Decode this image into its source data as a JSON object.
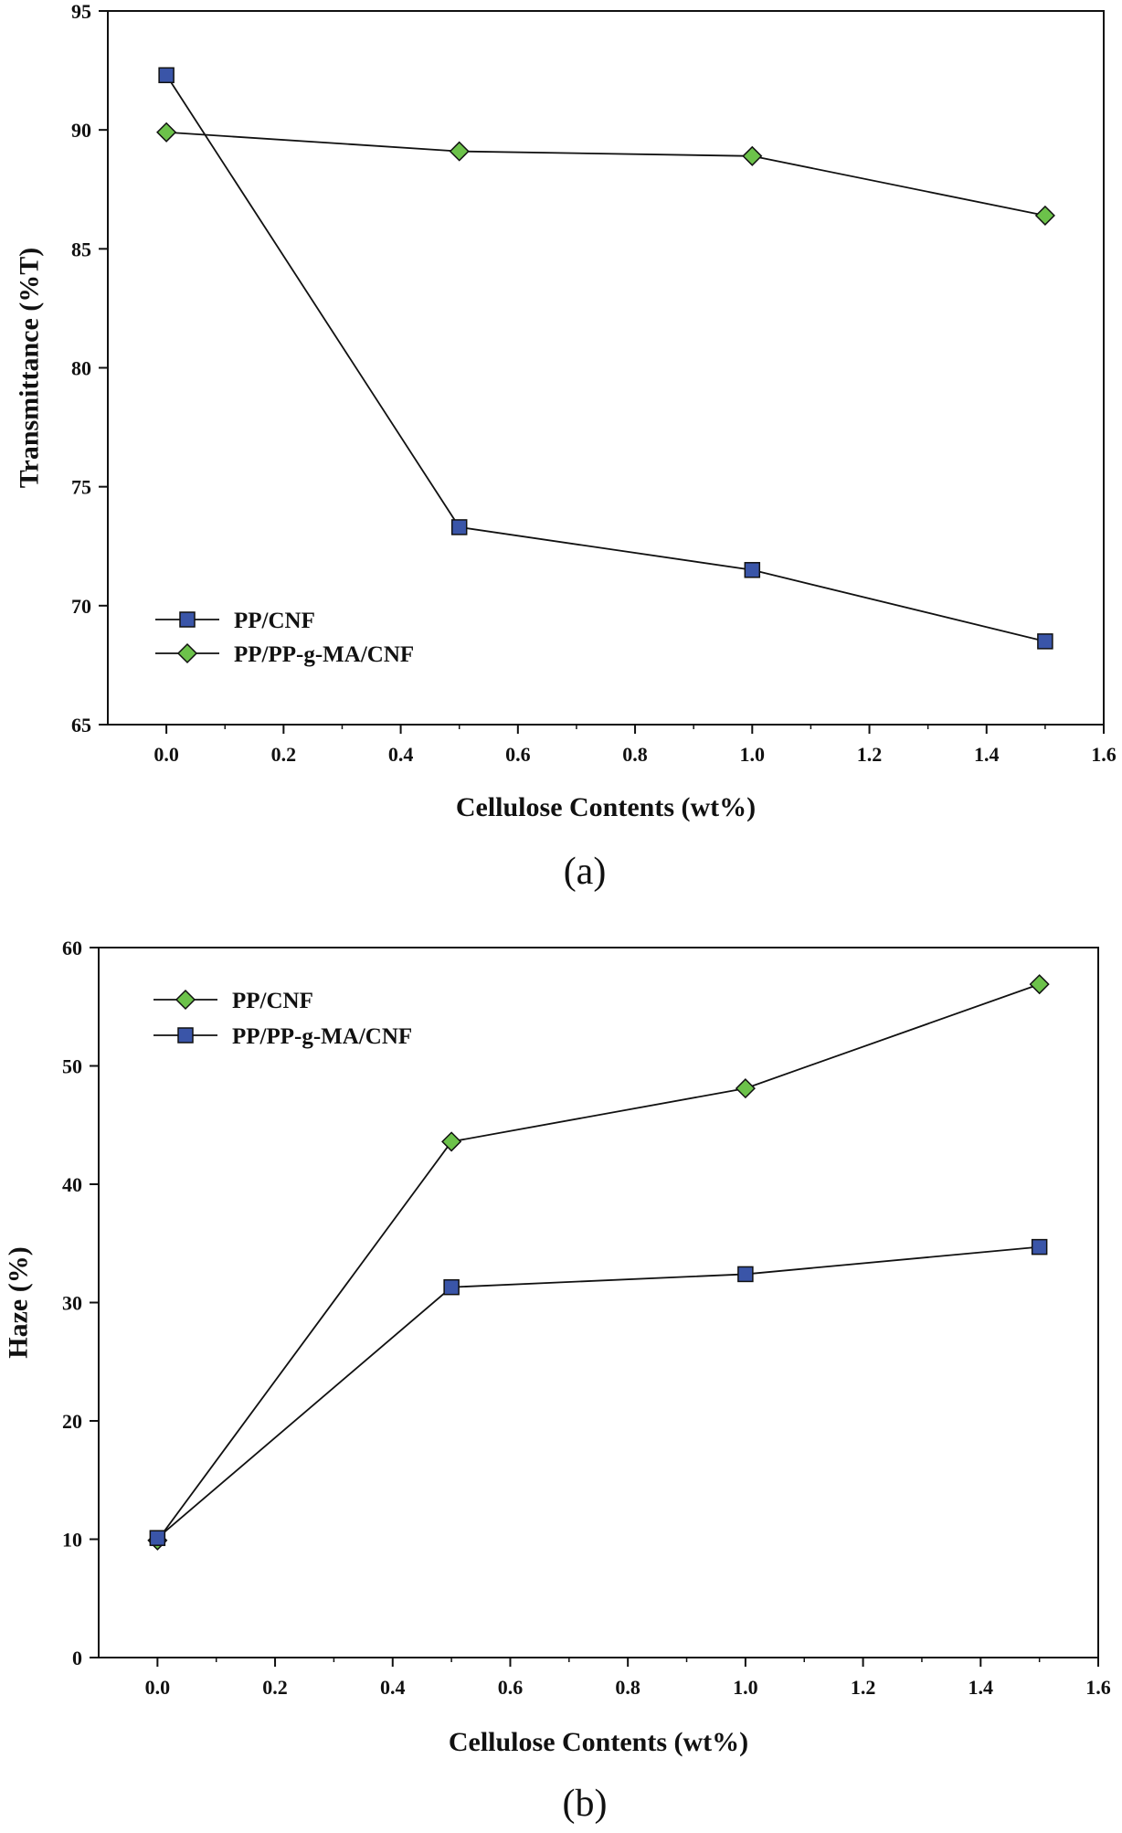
{
  "colors": {
    "square": "#3a55a8",
    "diamond": "#6cc24a",
    "line": "#111111"
  },
  "chart_data": [
    {
      "type": "line",
      "panel_label": "(a)",
      "xlabel": "Cellulose Contents (wt%)",
      "ylabel": "Transmittance (%T)",
      "xlim": [
        -0.1,
        1.6
      ],
      "ylim": [
        65,
        95
      ],
      "xticks": [
        "0.0",
        "0.2",
        "0.4",
        "0.6",
        "0.8",
        "1.0",
        "1.2",
        "1.4",
        "1.6"
      ],
      "yticks": [
        "65",
        "70",
        "75",
        "80",
        "85",
        "90",
        "95"
      ],
      "legend_position": "bottom-left",
      "series": [
        {
          "name": "PP/CNF",
          "marker": "square",
          "x": [
            0.0,
            0.5,
            1.0,
            1.5
          ],
          "y": [
            92.3,
            73.3,
            71.5,
            68.5
          ]
        },
        {
          "name": "PP/PP-g-MA/CNF",
          "marker": "diamond",
          "x": [
            0.0,
            0.5,
            1.0,
            1.5
          ],
          "y": [
            89.9,
            89.1,
            88.9,
            86.4
          ]
        }
      ]
    },
    {
      "type": "line",
      "panel_label": "(b)",
      "xlabel": "Cellulose Contents (wt%)",
      "ylabel": "Haze (%)",
      "xlim": [
        -0.1,
        1.6
      ],
      "ylim": [
        0,
        60
      ],
      "xticks": [
        "0.0",
        "0.2",
        "0.4",
        "0.6",
        "0.8",
        "1.0",
        "1.2",
        "1.4",
        "1.6"
      ],
      "yticks": [
        "0",
        "10",
        "20",
        "30",
        "40",
        "50",
        "60"
      ],
      "legend_position": "top-left",
      "series": [
        {
          "name": "PP/CNF",
          "marker": "diamond",
          "x": [
            0.0,
            0.5,
            1.0,
            1.5
          ],
          "y": [
            9.9,
            43.6,
            48.1,
            56.9
          ]
        },
        {
          "name": "PP/PP-g-MA/CNF",
          "marker": "square",
          "x": [
            0.0,
            0.5,
            1.0,
            1.5
          ],
          "y": [
            10.1,
            31.3,
            32.4,
            34.7
          ]
        }
      ]
    }
  ]
}
